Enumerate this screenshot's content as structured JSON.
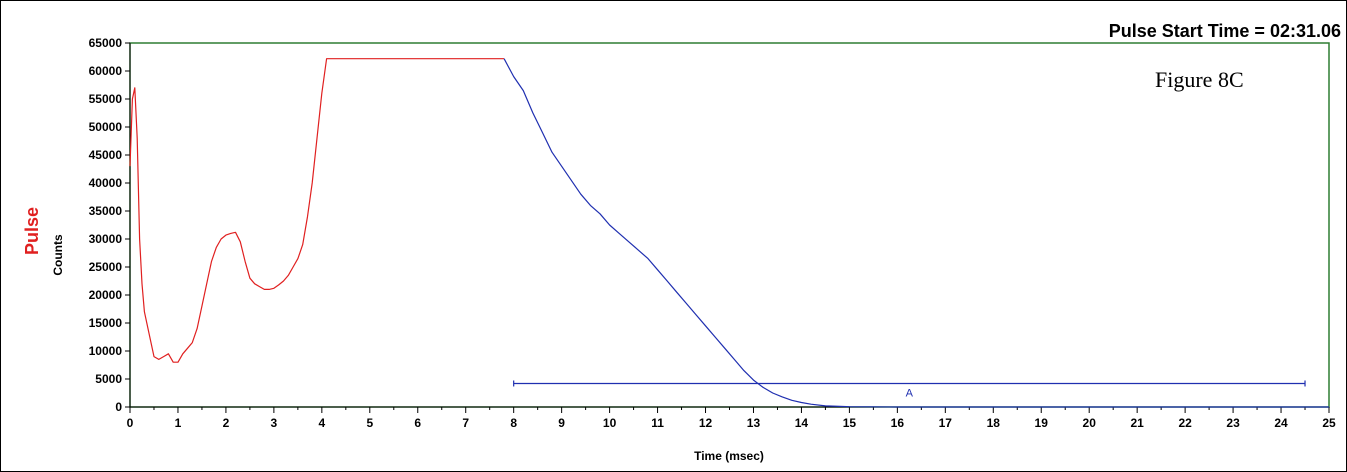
{
  "chart_data": {
    "type": "line",
    "title": "Pulse Start Time = 02:31.06",
    "series_label": "Pulse",
    "ylabel": "Counts",
    "xlabel": "Time (msec)",
    "annotation": "Figure 8C",
    "xlim": [
      0,
      25
    ],
    "ylim": [
      0,
      65000
    ],
    "x_ticks": [
      0,
      1,
      2,
      3,
      4,
      5,
      6,
      7,
      8,
      9,
      10,
      11,
      12,
      13,
      14,
      15,
      16,
      17,
      18,
      19,
      20,
      21,
      22,
      23,
      24,
      25
    ],
    "y_ticks": [
      0,
      5000,
      10000,
      15000,
      20000,
      25000,
      30000,
      35000,
      40000,
      45000,
      50000,
      55000,
      60000,
      65000
    ],
    "colors": {
      "axes_frame": "#2e7d32",
      "pulse": "#e02020",
      "decay": "#1f2fb0",
      "series_label": "#e02020"
    },
    "series": [
      {
        "color": "#e02020",
        "x": [
          0.0,
          0.05,
          0.1,
          0.15,
          0.2,
          0.25,
          0.3,
          0.4,
          0.5,
          0.6,
          0.7,
          0.8,
          0.9,
          1.0,
          1.1,
          1.2,
          1.3,
          1.4,
          1.5,
          1.6,
          1.7,
          1.8,
          1.9,
          2.0,
          2.1,
          2.2,
          2.3,
          2.4,
          2.5,
          2.6,
          2.7,
          2.8,
          2.9,
          3.0,
          3.1,
          3.2,
          3.3,
          3.4,
          3.5,
          3.6,
          3.7,
          3.8,
          3.9,
          4.0,
          4.1,
          5.0,
          6.0,
          7.0,
          7.8
        ],
        "y": [
          43000,
          55000,
          57000,
          48000,
          30000,
          22000,
          17000,
          13000,
          9000,
          8500,
          9000,
          9500,
          8000,
          8000,
          9500,
          10500,
          11500,
          14000,
          18000,
          22000,
          26000,
          28500,
          30000,
          30700,
          31000,
          31200,
          29500,
          26000,
          23000,
          22000,
          21500,
          21000,
          21000,
          21200,
          21800,
          22500,
          23500,
          25000,
          26500,
          29000,
          34000,
          40000,
          48000,
          56000,
          62200,
          62200,
          62200,
          62200,
          62200
        ]
      },
      {
        "color": "#1f2fb0",
        "x": [
          7.8,
          8.0,
          8.2,
          8.4,
          8.6,
          8.8,
          9.0,
          9.2,
          9.4,
          9.6,
          9.8,
          10.0,
          10.2,
          10.4,
          10.6,
          10.8,
          11.0,
          11.2,
          11.4,
          11.6,
          11.8,
          12.0,
          12.2,
          12.4,
          12.6,
          12.8,
          13.0,
          13.2,
          13.4,
          13.6,
          13.8,
          14.0,
          14.2,
          14.5,
          14.8,
          15.0,
          16.0,
          18.0,
          20.0,
          22.0,
          24.0,
          25.0
        ],
        "y": [
          62200,
          59000,
          56500,
          52500,
          49000,
          45500,
          43000,
          40500,
          38000,
          36000,
          34500,
          32500,
          31000,
          29500,
          28000,
          26500,
          24500,
          22500,
          20500,
          18500,
          16500,
          14500,
          12500,
          10500,
          8500,
          6500,
          4800,
          3500,
          2500,
          1800,
          1200,
          800,
          500,
          200,
          100,
          50,
          0,
          0,
          0,
          0,
          0,
          0
        ]
      }
    ],
    "markers": [
      {
        "label": "A",
        "x_start": 8.0,
        "x_end": 24.5,
        "y": 4200,
        "color": "#1f2fb0"
      }
    ]
  }
}
